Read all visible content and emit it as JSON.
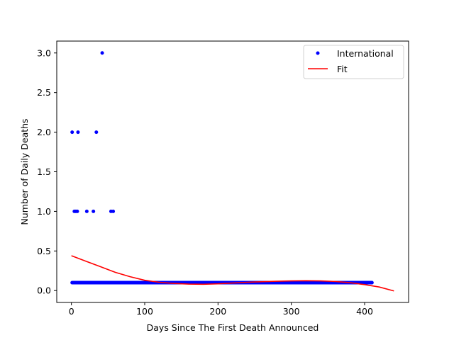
{
  "chart_data": {
    "type": "scatter",
    "title": "",
    "xlabel": "Days Since The First Death Announced",
    "ylabel": "Number of Daily Deaths",
    "xlim": [
      -20,
      460
    ],
    "ylim": [
      -0.15,
      3.15
    ],
    "xticks": [
      0,
      100,
      200,
      300,
      400
    ],
    "xtick_labels": [
      "0",
      "100",
      "200",
      "300",
      "400"
    ],
    "yticks": [
      0.0,
      0.5,
      1.0,
      1.5,
      2.0,
      2.5,
      3.0
    ],
    "ytick_labels": [
      "0.0",
      "0.5",
      "1.0",
      "1.5",
      "2.0",
      "2.5",
      "3.0"
    ],
    "grid": false,
    "legend_position": "top-right",
    "series": [
      {
        "name": "International",
        "kind": "scatter",
        "color": "#0000ff",
        "points": [
          [
            1,
            2.0
          ],
          [
            4,
            1.0
          ],
          [
            6,
            1.0
          ],
          [
            8,
            1.0
          ],
          [
            9,
            2.0
          ],
          [
            21,
            1.0
          ],
          [
            30,
            1.0
          ],
          [
            34,
            2.0
          ],
          [
            42,
            3.0
          ],
          [
            54,
            1.0
          ],
          [
            57,
            1.0
          ]
        ],
        "baseline_value": 0.1,
        "baseline_x_range": [
          1,
          410
        ],
        "baseline_step": 1
      },
      {
        "name": "Fit",
        "kind": "line",
        "color": "#ff0000",
        "points": [
          [
            0,
            0.44
          ],
          [
            20,
            0.37
          ],
          [
            40,
            0.3
          ],
          [
            60,
            0.23
          ],
          [
            80,
            0.175
          ],
          [
            100,
            0.13
          ],
          [
            120,
            0.105
          ],
          [
            140,
            0.09
          ],
          [
            160,
            0.082
          ],
          [
            180,
            0.08
          ],
          [
            200,
            0.085
          ],
          [
            220,
            0.095
          ],
          [
            240,
            0.105
          ],
          [
            260,
            0.112
          ],
          [
            280,
            0.118
          ],
          [
            300,
            0.122
          ],
          [
            320,
            0.124
          ],
          [
            340,
            0.122
          ],
          [
            360,
            0.115
          ],
          [
            380,
            0.1
          ],
          [
            400,
            0.075
          ],
          [
            420,
            0.045
          ],
          [
            440,
            -0.005
          ]
        ]
      }
    ]
  }
}
